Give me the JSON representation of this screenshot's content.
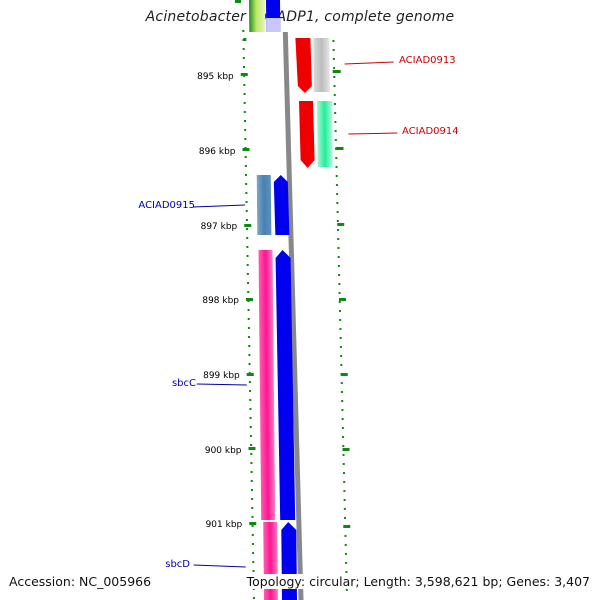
{
  "title": "Acinetobacter sp. ADP1, complete genome",
  "footer": {
    "accession": "Accession: NC_005966",
    "summary": "Topology: circular; Length: 3,598,621 bp; Genes: 3,407"
  },
  "axis": {
    "unit": "kbp",
    "ticks": [
      "895 kbp",
      "896 kbp",
      "897 kbp",
      "898 kbp",
      "899 kbp",
      "900 kbp",
      "901 kbp"
    ]
  },
  "genes": [
    {
      "id": "ACIAD0913",
      "label": "ACIAD0913",
      "strand": "forward",
      "label_color": "#cc0000",
      "colors": [
        "#ee0000",
        "#bdbdbd"
      ]
    },
    {
      "id": "ACIAD0914",
      "label": "ACIAD0914",
      "strand": "forward",
      "label_color": "#cc0000",
      "colors": [
        "#ee0000",
        "#22ee99"
      ]
    },
    {
      "id": "ACIAD0915",
      "label": "ACIAD0915",
      "strand": "reverse",
      "label_color": "#0000aa",
      "colors": [
        "#4682b4",
        "#0000ee"
      ]
    },
    {
      "id": "sbcC",
      "label": "sbcC",
      "strand": "reverse",
      "label_color": "#0000aa",
      "colors": [
        "#ff1493",
        "#0000ee"
      ]
    },
    {
      "id": "sbcD",
      "label": "sbcD",
      "strand": "reverse",
      "label_color": "#0000aa",
      "colors": [
        "#ff1493",
        "#0000ee"
      ]
    }
  ],
  "colors": {
    "tick": "#118811",
    "backbone": "#888888",
    "forward_label": "#cc0000",
    "reverse_label": "#0000aa"
  }
}
